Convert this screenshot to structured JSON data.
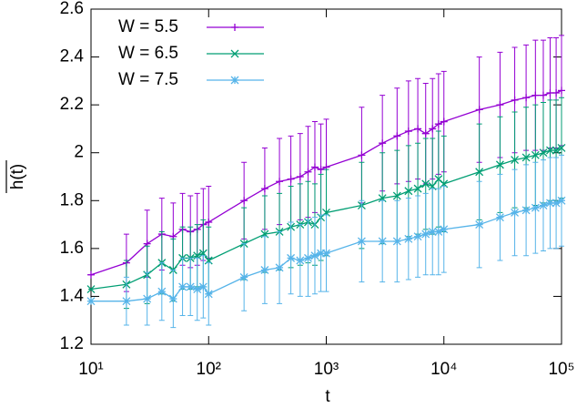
{
  "chart_data": {
    "type": "line",
    "x_label": "t",
    "y_label": "h(t)",
    "log_x": true,
    "legend": "top-left",
    "x": [
      10,
      20,
      30,
      40,
      50,
      60,
      70,
      80,
      90,
      100,
      200,
      300,
      400,
      500,
      600,
      700,
      800,
      900,
      1000,
      2000,
      3000,
      4000,
      5000,
      6000,
      7000,
      8000,
      9000,
      10000,
      20000,
      30000,
      40000,
      50000,
      60000,
      70000,
      80000,
      90000,
      100000
    ],
    "xlim": [
      10,
      100000
    ],
    "xticks": [
      {
        "value": 10,
        "label": "10¹"
      },
      {
        "value": 100,
        "label": "10²"
      },
      {
        "value": 1000,
        "label": "10³"
      },
      {
        "value": 10000,
        "label": "10⁴"
      },
      {
        "value": 100000,
        "label": "10⁵"
      }
    ],
    "ylim": [
      1.2,
      2.6
    ],
    "yticks": [
      1.2,
      1.4,
      1.6,
      1.8,
      2,
      2.2,
      2.4,
      2.6
    ],
    "series": [
      {
        "name": "W = 5.5",
        "color": "#9400d3",
        "marker": "plus",
        "values": [
          1.49,
          1.54,
          1.62,
          1.66,
          1.65,
          1.68,
          1.67,
          1.68,
          1.7,
          1.71,
          1.8,
          1.85,
          1.88,
          1.89,
          1.9,
          1.92,
          1.94,
          1.93,
          1.94,
          1.99,
          2.04,
          2.07,
          2.09,
          2.1,
          2.08,
          2.1,
          2.12,
          2.13,
          2.18,
          2.2,
          2.22,
          2.23,
          2.24,
          2.24,
          2.25,
          2.25,
          2.26
        ],
        "errors": [
          0,
          0.12,
          0.14,
          0.15,
          0.14,
          0.15,
          0.15,
          0.15,
          0.15,
          0.15,
          0.16,
          0.17,
          0.18,
          0.18,
          0.18,
          0.19,
          0.19,
          0.19,
          0.2,
          0.2,
          0.2,
          0.2,
          0.21,
          0.21,
          0.21,
          0.21,
          0.21,
          0.21,
          0.22,
          0.22,
          0.22,
          0.22,
          0.23,
          0.23,
          0.23,
          0.23,
          0.23
        ]
      },
      {
        "name": "W = 6.5",
        "color": "#009e73",
        "marker": "cross",
        "values": [
          1.43,
          1.45,
          1.49,
          1.54,
          1.51,
          1.56,
          1.56,
          1.57,
          1.58,
          1.55,
          1.62,
          1.66,
          1.67,
          1.69,
          1.7,
          1.71,
          1.7,
          1.73,
          1.75,
          1.78,
          1.81,
          1.82,
          1.84,
          1.85,
          1.87,
          1.86,
          1.89,
          1.87,
          1.92,
          1.95,
          1.97,
          1.98,
          1.99,
          2.0,
          2.01,
          2.01,
          2.02
        ],
        "errors": [
          0,
          0.1,
          0.12,
          0.13,
          0.13,
          0.13,
          0.13,
          0.13,
          0.14,
          0.14,
          0.15,
          0.16,
          0.16,
          0.17,
          0.17,
          0.17,
          0.17,
          0.18,
          0.18,
          0.18,
          0.19,
          0.19,
          0.19,
          0.19,
          0.19,
          0.2,
          0.2,
          0.2,
          0.2,
          0.2,
          0.2,
          0.21,
          0.21,
          0.21,
          0.21,
          0.21,
          0.21
        ]
      },
      {
        "name": "W = 7.5",
        "color": "#56b4e9",
        "marker": "star",
        "values": [
          1.38,
          1.38,
          1.39,
          1.42,
          1.39,
          1.44,
          1.44,
          1.43,
          1.44,
          1.41,
          1.48,
          1.51,
          1.52,
          1.56,
          1.55,
          1.56,
          1.57,
          1.58,
          1.58,
          1.63,
          1.63,
          1.63,
          1.64,
          1.65,
          1.66,
          1.67,
          1.67,
          1.68,
          1.7,
          1.73,
          1.75,
          1.76,
          1.77,
          1.78,
          1.79,
          1.79,
          1.8
        ],
        "errors": [
          0,
          0.1,
          0.11,
          0.12,
          0.12,
          0.12,
          0.12,
          0.13,
          0.13,
          0.13,
          0.14,
          0.14,
          0.15,
          0.15,
          0.15,
          0.16,
          0.16,
          0.16,
          0.16,
          0.17,
          0.17,
          0.17,
          0.17,
          0.17,
          0.17,
          0.18,
          0.18,
          0.18,
          0.18,
          0.18,
          0.18,
          0.19,
          0.19,
          0.19,
          0.19,
          0.19,
          0.19
        ]
      }
    ]
  }
}
